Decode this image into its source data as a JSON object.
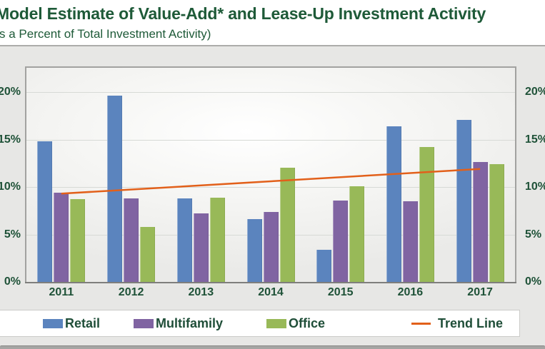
{
  "chart_data": {
    "type": "bar",
    "title": "Model Estimate of Value-Add* and Lease-Up Investment Activity",
    "subtitle": "(As a Percent of Total Investment Activity)",
    "categories": [
      "2011",
      "2012",
      "2013",
      "2014",
      "2015",
      "2016",
      "2017"
    ],
    "series": [
      {
        "name": "Retail",
        "color": "#5b84be",
        "values": [
          14.8,
          19.6,
          8.8,
          6.6,
          3.4,
          16.4,
          17.1
        ]
      },
      {
        "name": "Multifamily",
        "color": "#8064a2",
        "values": [
          9.4,
          8.8,
          7.2,
          7.4,
          8.6,
          8.5,
          12.6
        ]
      },
      {
        "name": "Office",
        "color": "#98b958",
        "values": [
          8.7,
          5.8,
          8.9,
          12.0,
          10.1,
          14.2,
          12.4
        ]
      }
    ],
    "trend_line": {
      "name": "Trend Line",
      "color": "#e2601a",
      "start_value": 9.3,
      "end_value": 11.9
    },
    "y_axis": {
      "tick_values": [
        0,
        5,
        10,
        15,
        20
      ],
      "tick_labels": [
        "0%",
        "5%",
        "10%",
        "15%",
        "20%"
      ],
      "ylim": [
        0,
        22.5
      ],
      "left_labels_shown": true,
      "right_labels_shown": true
    },
    "grid": true,
    "legend_position": "bottom",
    "legend": [
      "Retail",
      "Multifamily",
      "Office",
      "Trend Line"
    ]
  },
  "colors": {
    "title_green": "#1e5a38",
    "axis_text_green": "#1f5238",
    "page_background": "#e7e7e5",
    "plot_border": "#a2a2a0"
  }
}
